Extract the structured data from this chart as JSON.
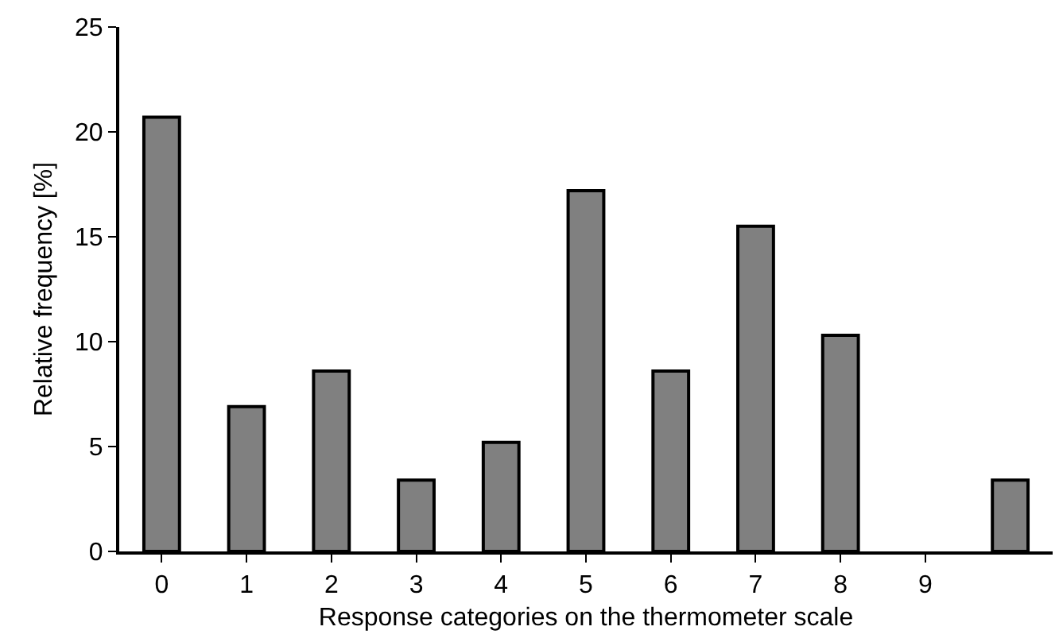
{
  "chart_data": {
    "type": "bar",
    "xlabel": "Response categories on the thermometer scale",
    "ylabel": "Relative frequency [%]",
    "categories": [
      "0",
      "1",
      "2",
      "3",
      "4",
      "5",
      "6",
      "7",
      "8",
      "9",
      null
    ],
    "values": [
      20.7,
      6.9,
      8.6,
      3.4,
      5.2,
      17.2,
      8.6,
      15.5,
      10.3,
      0,
      3.4
    ],
    "color": "#808080",
    "ylim": [
      0,
      25
    ],
    "yticks": [
      0,
      5,
      10,
      15,
      20,
      25
    ],
    "grid": false,
    "legend": false
  }
}
